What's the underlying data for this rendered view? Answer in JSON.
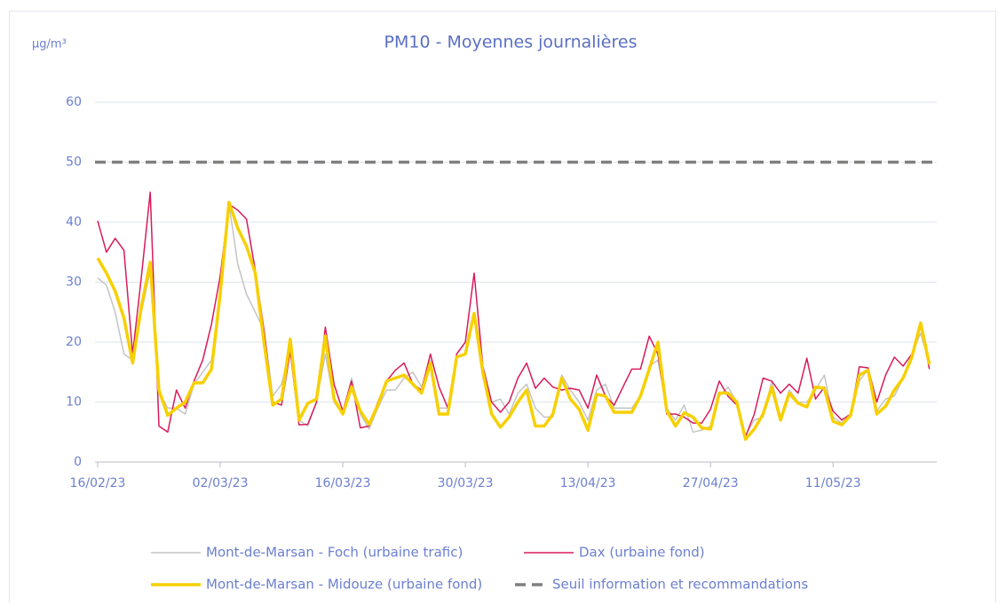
{
  "chart_data": {
    "type": "line",
    "title": "PM10 - Moyennes journalières",
    "y_unit": "µg/m³",
    "categories": [
      "16/02/23",
      null,
      null,
      null,
      null,
      null,
      null,
      null,
      null,
      null,
      null,
      null,
      null,
      null,
      "02/03/23",
      null,
      null,
      null,
      null,
      null,
      null,
      null,
      null,
      null,
      null,
      null,
      null,
      null,
      "16/03/23",
      null,
      null,
      null,
      null,
      null,
      null,
      null,
      null,
      null,
      null,
      null,
      null,
      null,
      "30/03/23",
      null,
      null,
      null,
      null,
      null,
      null,
      null,
      null,
      null,
      null,
      null,
      null,
      null,
      "13/04/23",
      null,
      null,
      null,
      null,
      null,
      null,
      null,
      null,
      null,
      null,
      null,
      null,
      null,
      "27/04/23",
      null,
      null,
      null,
      null,
      null,
      null,
      null,
      null,
      null,
      null,
      null,
      null,
      null,
      "11/05/23",
      null,
      null,
      null,
      null,
      null,
      null,
      null,
      null,
      null,
      null,
      null
    ],
    "series": [
      {
        "name": "Mont-de-Marsan - Foch (urbaine trafic)",
        "color": "#c4c4c4",
        "width": 1.5,
        "values": [
          30.7,
          29.5,
          25,
          18,
          17,
          25,
          32,
          11.8,
          9,
          9,
          8,
          13,
          15,
          17,
          27,
          43,
          33,
          28,
          25,
          22,
          11,
          13,
          19,
          7,
          6,
          10,
          18,
          10,
          8,
          14,
          8,
          5.5,
          9,
          12,
          12,
          14,
          15,
          12.5,
          17,
          9,
          9,
          17.5,
          18,
          24,
          14,
          10,
          10.5,
          8,
          11.5,
          13,
          9,
          7.5,
          7.5,
          14.5,
          12,
          10,
          7,
          12,
          13,
          9,
          9,
          9,
          11,
          16,
          17,
          9,
          7,
          9.5,
          5,
          5.3,
          6,
          11,
          12.5,
          10,
          4.5,
          7,
          7.5,
          13.5,
          7.5,
          12,
          10,
          10,
          12,
          14.5,
          7.5,
          6.5,
          8,
          13.5,
          15.5,
          8.5,
          10.5,
          11,
          14,
          18,
          21.5,
          16.5
        ]
      },
      {
        "name": "Dax (urbaine fond)",
        "color": "#d81b5a",
        "width": 1.5,
        "values": [
          40.2,
          35,
          37.3,
          35.3,
          18,
          31,
          45,
          6,
          5,
          12,
          9,
          13.5,
          17,
          23,
          31,
          43,
          42,
          40.5,
          32,
          22,
          10,
          9.5,
          18.5,
          6.2,
          6.3,
          10,
          22.5,
          13,
          8.5,
          13.5,
          5.7,
          6,
          10,
          13.5,
          15.3,
          16.5,
          13,
          12,
          18,
          12.5,
          9,
          18,
          20,
          31.5,
          16,
          10,
          8.3,
          10,
          14,
          16.5,
          12.3,
          14,
          12.5,
          12,
          12.3,
          12,
          9,
          14.5,
          11,
          9.5,
          12.5,
          15.5,
          15.5,
          21,
          18,
          8,
          8,
          7.5,
          6.5,
          6.5,
          8.8,
          13.5,
          11,
          9.5,
          4.2,
          8,
          14,
          13.5,
          11.5,
          13,
          11.5,
          17.3,
          10.5,
          12.5,
          8.5,
          7,
          8,
          15.9,
          15.7,
          10,
          14.5,
          17.5,
          16,
          18,
          23,
          15.5
        ]
      },
      {
        "name": "Mont-de-Marsan - Midouze (urbaine fond)",
        "color": "#f7d000",
        "width": 3.5,
        "values": [
          34,
          31.5,
          28.5,
          24,
          16.5,
          26,
          33.3,
          12,
          7.8,
          9,
          10,
          13.2,
          13.2,
          15.5,
          28,
          43.3,
          39,
          36,
          31.5,
          20,
          9.5,
          10.5,
          20.5,
          7,
          9.8,
          10.5,
          21,
          10.5,
          8,
          12.5,
          8.5,
          6.3,
          9.5,
          13.5,
          14,
          14.5,
          13,
          11.5,
          16.5,
          8,
          8,
          17.5,
          18,
          24.8,
          15,
          8,
          5.8,
          7.5,
          10,
          12,
          6,
          6,
          8,
          14,
          10.5,
          8.8,
          5.3,
          11.3,
          11,
          8.3,
          8.3,
          8.3,
          11,
          15.5,
          20,
          8.5,
          6,
          8.2,
          7.5,
          5.7,
          5.5,
          11.5,
          11.5,
          10,
          3.8,
          5.5,
          8,
          12.5,
          7,
          11.5,
          9.8,
          9.2,
          12.5,
          12.3,
          6.8,
          6.2,
          7.8,
          14.5,
          15.3,
          8,
          9.3,
          12,
          14,
          17.5,
          23.2,
          16.3
        ]
      }
    ],
    "threshold": {
      "name": "Seuil information et recommandations",
      "value": 50,
      "color": "#808080"
    },
    "ylim": [
      0,
      60
    ],
    "yticks": [
      0,
      10,
      20,
      30,
      40,
      50,
      60
    ],
    "grid": true
  }
}
